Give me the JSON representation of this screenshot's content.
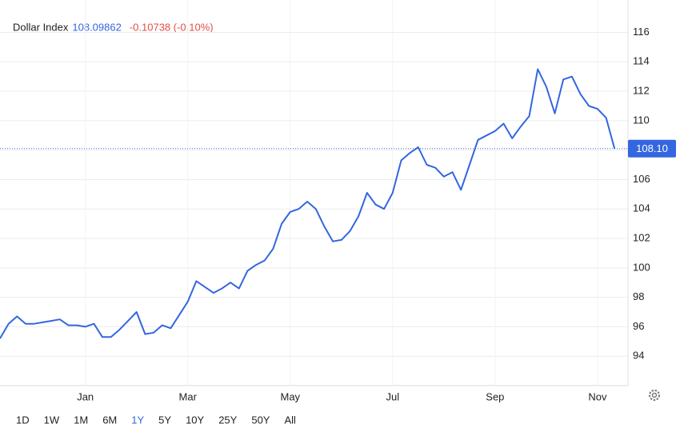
{
  "chart_data": {
    "type": "line",
    "title": "Dollar Index",
    "price": "108.09862",
    "change": "-0.10738 (-0.10%)",
    "categories": [
      null,
      null,
      null,
      null,
      null,
      null,
      null,
      null,
      null,
      null,
      "Jan",
      null,
      null,
      null,
      null,
      null,
      null,
      null,
      null,
      null,
      null,
      null,
      "Mar",
      null,
      null,
      null,
      null,
      null,
      null,
      null,
      null,
      null,
      null,
      null,
      "May",
      null,
      null,
      null,
      null,
      null,
      null,
      null,
      null,
      null,
      null,
      null,
      "Jul",
      null,
      null,
      null,
      null,
      null,
      null,
      null,
      null,
      null,
      null,
      null,
      "Sep",
      null,
      null,
      null,
      null,
      null,
      null,
      null,
      null,
      null,
      null,
      null,
      "Nov",
      null,
      null
    ],
    "series": [
      {
        "name": "Dollar Index",
        "color": "#3366e0",
        "values": [
          95.2,
          96.2,
          96.7,
          96.2,
          96.2,
          96.3,
          96.4,
          96.5,
          96.1,
          96.1,
          96.0,
          96.2,
          95.3,
          95.3,
          95.8,
          96.4,
          97.0,
          95.5,
          95.6,
          96.1,
          95.9,
          96.8,
          97.7,
          99.1,
          98.7,
          98.3,
          98.6,
          99.0,
          98.6,
          99.8,
          100.2,
          100.5,
          101.3,
          103.0,
          103.8,
          104.0,
          104.5,
          104.0,
          102.8,
          101.8,
          101.9,
          102.5,
          103.5,
          105.1,
          104.3,
          104.0,
          105.1,
          107.3,
          107.8,
          108.2,
          107.0,
          106.8,
          106.2,
          106.5,
          105.3,
          107.0,
          108.7,
          109.0,
          109.3,
          109.8,
          108.8,
          109.6,
          110.3,
          113.5,
          112.3,
          110.5,
          112.8,
          113.0,
          111.8,
          111.0,
          110.8,
          110.2,
          108.1
        ]
      }
    ],
    "ylim": [
      92,
      118.2
    ],
    "yticks": [
      94,
      96,
      98,
      100,
      102,
      104,
      106,
      108,
      110,
      112,
      114,
      116
    ],
    "grid": true,
    "reference_line": {
      "value": 108.1,
      "label": "108.10",
      "color": "#3366e0"
    },
    "ranges": [
      "1D",
      "1W",
      "1M",
      "6M",
      "1Y",
      "5Y",
      "10Y",
      "25Y",
      "50Y",
      "All"
    ],
    "active_range": 4
  }
}
